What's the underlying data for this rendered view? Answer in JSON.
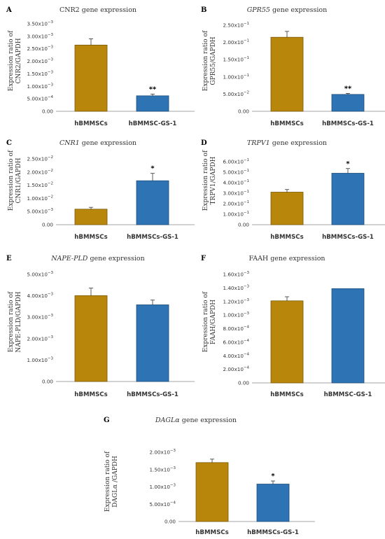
{
  "colors": {
    "bar1": "#B8860B",
    "bar1_edge": "#7A5A08",
    "bar2": "#2E74B5",
    "bar2_edge": "#1F4E79",
    "axis": "#888888",
    "error": "#333333"
  },
  "chart_data": [
    {
      "type": "bar",
      "letter": "A",
      "title_italic": "",
      "title_rest": "CNR2 gene expression",
      "ylabel_lines": [
        "Expression ratio of",
        "CNR2/GAPDH"
      ],
      "categories": [
        "hBMMSCs",
        "hBMMSC-GS-1"
      ],
      "values": [
        0.00265,
        0.00062
      ],
      "errors": [
        0.00025,
        7e-05
      ],
      "sig": [
        "",
        "**"
      ],
      "ylim": [
        0,
        0.0035
      ],
      "ticks": [
        {
          "v": 0,
          "m": "0.00",
          "e": ""
        },
        {
          "v": 0.0005,
          "m": "5.00x10",
          "e": "−4"
        },
        {
          "v": 0.001,
          "m": "1.00x10",
          "e": "−3"
        },
        {
          "v": 0.0015,
          "m": "1.50x10",
          "e": "−3"
        },
        {
          "v": 0.002,
          "m": "2.00x10",
          "e": "−3"
        },
        {
          "v": 0.0025,
          "m": "2.50x10",
          "e": "−3"
        },
        {
          "v": 0.003,
          "m": "3.00x10",
          "e": "−3"
        },
        {
          "v": 0.0035,
          "m": "3.50x10",
          "e": "−3"
        }
      ]
    },
    {
      "type": "bar",
      "letter": "B",
      "title_italic": "GPR55",
      "title_rest": " gene expression",
      "ylabel_lines": [
        "Expression ratio of",
        "GPR55/GAPDH"
      ],
      "categories": [
        "hBMMSCs",
        "hBMMSCs-GS-1"
      ],
      "values": [
        0.215,
        0.049
      ],
      "errors": [
        0.017,
        0.003
      ],
      "sig": [
        "",
        "**"
      ],
      "ylim": [
        0,
        0.25
      ],
      "ticks": [
        {
          "v": 0,
          "m": "0.00",
          "e": ""
        },
        {
          "v": 0.05,
          "m": "5.00x10",
          "e": "−2"
        },
        {
          "v": 0.1,
          "m": "1.00x10",
          "e": "−1"
        },
        {
          "v": 0.15,
          "m": "1.50x10",
          "e": "−1"
        },
        {
          "v": 0.2,
          "m": "2.00x10",
          "e": "−1"
        },
        {
          "v": 0.25,
          "m": "2.50x10",
          "e": "−1"
        }
      ]
    },
    {
      "type": "bar",
      "letter": "C",
      "title_italic": "CNR1",
      "title_rest": " gene expression",
      "ylabel_lines": [
        "Expression ratio of",
        "CNR1/GAPDH"
      ],
      "categories": [
        "hBMMSCs",
        "hBMMSCs-GS-1"
      ],
      "values": [
        0.0059,
        0.0167
      ],
      "errors": [
        0.0007,
        0.0028
      ],
      "sig": [
        "",
        "*"
      ],
      "ylim": [
        0,
        0.025
      ],
      "ticks": [
        {
          "v": 0,
          "m": "0.00",
          "e": ""
        },
        {
          "v": 0.005,
          "m": "5.00x10",
          "e": "−3"
        },
        {
          "v": 0.01,
          "m": "1.00x10",
          "e": "−2"
        },
        {
          "v": 0.015,
          "m": "1.50x10",
          "e": "−2"
        },
        {
          "v": 0.02,
          "m": "2.00x10",
          "e": "−2"
        },
        {
          "v": 0.025,
          "m": "2.50x10",
          "e": "−2"
        }
      ]
    },
    {
      "type": "bar",
      "letter": "D",
      "title_italic": "TRPV1",
      "title_rest": " gene expression",
      "ylabel_lines": [
        "Expression ratio of",
        "TRPV1/GAPDH"
      ],
      "categories": [
        "hBMMSCs",
        "hBMMSCs-GS-1"
      ],
      "values": [
        0.31,
        0.49
      ],
      "errors": [
        0.025,
        0.045
      ],
      "sig": [
        "",
        "*"
      ],
      "ylim": [
        0,
        0.6
      ],
      "ticks": [
        {
          "v": 0,
          "m": "0.00",
          "e": ""
        },
        {
          "v": 0.1,
          "m": "1.00x10",
          "e": "−1"
        },
        {
          "v": 0.2,
          "m": "2.00x10",
          "e": "−1"
        },
        {
          "v": 0.3,
          "m": "3.00x10",
          "e": "−1"
        },
        {
          "v": 0.4,
          "m": "4.00x10",
          "e": "−1"
        },
        {
          "v": 0.5,
          "m": "5.00x10",
          "e": "−1"
        },
        {
          "v": 0.6,
          "m": "6.00x10",
          "e": "−1"
        }
      ]
    },
    {
      "type": "bar",
      "letter": "E",
      "title_italic": "NAPE-PLD",
      "title_rest": " gene expression",
      "ylabel_lines": [
        "Expression ratio of",
        "NAPE-PLD/GAPDH"
      ],
      "categories": [
        "hBMMSCs",
        "hBMMSCs-GS-1"
      ],
      "values": [
        0.00401,
        0.00358
      ],
      "errors": [
        0.00035,
        0.00022
      ],
      "sig": [
        "",
        ""
      ],
      "ylim": [
        0,
        0.005
      ],
      "ticks": [
        {
          "v": 0,
          "m": "0.00",
          "e": ""
        },
        {
          "v": 0.001,
          "m": "1.00x10",
          "e": "−3"
        },
        {
          "v": 0.002,
          "m": "2.00x10",
          "e": "−3"
        },
        {
          "v": 0.003,
          "m": "3.00x10",
          "e": "−3"
        },
        {
          "v": 0.004,
          "m": "4.00x10",
          "e": "−3"
        },
        {
          "v": 0.005,
          "m": "5.00x10",
          "e": "−3"
        }
      ]
    },
    {
      "type": "bar",
      "letter": "F",
      "title_italic": "",
      "title_rest": "FAAH gene expression",
      "ylabel_lines": [
        "Expression ratio of",
        "FAAH/GAPDH"
      ],
      "categories": [
        "hBMMSCs",
        "hBMMSC-GS-1"
      ],
      "values": [
        0.00121,
        0.00139
      ],
      "errors": [
        6e-05,
        0.0
      ],
      "sig": [
        "",
        ""
      ],
      "ylim": [
        0,
        0.0016
      ],
      "ticks": [
        {
          "v": 0,
          "m": "0.00",
          "e": ""
        },
        {
          "v": 0.0002,
          "m": "2.00x10",
          "e": "−4"
        },
        {
          "v": 0.0004,
          "m": "4.00x10",
          "e": "−4"
        },
        {
          "v": 0.0006,
          "m": "6.00x10",
          "e": "−4"
        },
        {
          "v": 0.0008,
          "m": "8.00x10",
          "e": "−4"
        },
        {
          "v": 0.001,
          "m": "1.00x10",
          "e": "−3"
        },
        {
          "v": 0.0012,
          "m": "1.20x10",
          "e": "−3"
        },
        {
          "v": 0.0014,
          "m": "1.40x10",
          "e": "−3"
        },
        {
          "v": 0.0016,
          "m": "1.60x10",
          "e": "−3"
        }
      ]
    },
    {
      "type": "bar",
      "letter": "G",
      "title_italic": "DAGLα",
      "title_rest": " gene expression",
      "ylabel_lines": [
        "Expression ratio of",
        "DAGLα /GAPDH"
      ],
      "categories": [
        "hBMMSCs",
        "hBMMSCs-GS-1"
      ],
      "values": [
        0.0017,
        0.00108
      ],
      "errors": [
        0.0001,
        9e-05
      ],
      "sig": [
        "",
        "*"
      ],
      "ylim": [
        0,
        0.002
      ],
      "ticks": [
        {
          "v": 0,
          "m": "0.00",
          "e": ""
        },
        {
          "v": 0.0005,
          "m": "5.00x10",
          "e": "−4"
        },
        {
          "v": 0.001,
          "m": "1.00x10",
          "e": "−3"
        },
        {
          "v": 0.0015,
          "m": "1.50x10",
          "e": "−3"
        },
        {
          "v": 0.002,
          "m": "2.00x10",
          "e": "−3"
        }
      ]
    }
  ]
}
